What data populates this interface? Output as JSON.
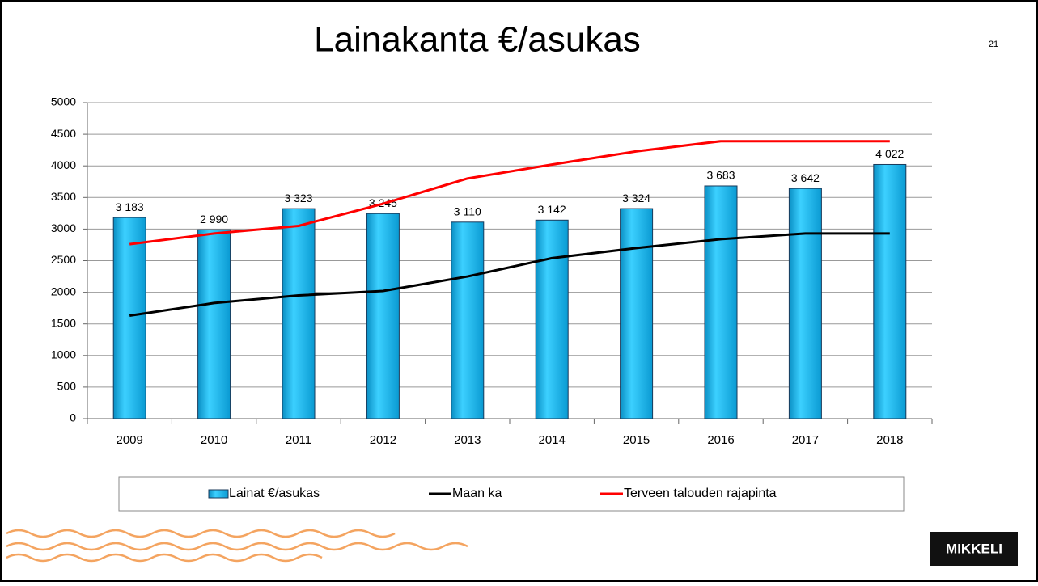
{
  "chart_data": {
    "type": "bar-line",
    "title": "Lainakanta €/asukas",
    "categories": [
      "2009",
      "2010",
      "2011",
      "2012",
      "2013",
      "2014",
      "2015",
      "2016",
      "2017",
      "2018"
    ],
    "series": [
      {
        "name": "Lainat €/asukas",
        "type": "bar",
        "color": "#12b4ea",
        "values": [
          3183,
          2990,
          3323,
          3245,
          3110,
          3142,
          3324,
          3683,
          3642,
          4022
        ],
        "value_labels": [
          "3 183",
          "2 990",
          "3 323",
          "3 245",
          "3 110",
          "3 142",
          "3 324",
          "3 683",
          "3 642",
          "4 022"
        ]
      },
      {
        "name": "Maan ka",
        "type": "line",
        "color": "#000000",
        "values": [
          1630,
          1830,
          1950,
          2020,
          2250,
          2540,
          2700,
          2840,
          2930,
          2930
        ]
      },
      {
        "name": "Terveen talouden rajapinta",
        "type": "line",
        "color": "#ff0000",
        "values": [
          2760,
          2930,
          3050,
          3400,
          3800,
          4020,
          4230,
          4390,
          4390,
          4390
        ]
      }
    ],
    "ylim": [
      0,
      5000
    ],
    "yticks": [
      0,
      500,
      1000,
      1500,
      2000,
      2500,
      3000,
      3500,
      4000,
      4500,
      5000
    ],
    "grid": true,
    "legend": "bottom"
  },
  "slide_number": 21,
  "logo": "MIKKELI"
}
